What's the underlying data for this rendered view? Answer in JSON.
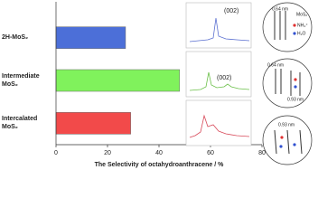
{
  "chart_data": {
    "type": "bar",
    "orientation": "horizontal",
    "categories": [
      "2H-MoS₂",
      "Intermediate MoS₂",
      "Intercalated MoS₂"
    ],
    "values": [
      27,
      48,
      29
    ],
    "colors": [
      "#4c6fd8",
      "#80f25c",
      "#f24a4a"
    ],
    "xlim": [
      0,
      80
    ],
    "xticks": [
      0,
      20,
      40,
      60,
      80
    ],
    "x_label": "The Selectivity of octahydroanthracene / %"
  },
  "insets": {
    "peak_labels": [
      "(002)",
      "(002)"
    ]
  },
  "schematics": {
    "labels": [
      "0.64 nm",
      "MoS₂",
      "NH₄⁺",
      "H₂O",
      "0.64 nm",
      "0.93 nm",
      "0.93 nm"
    ]
  }
}
